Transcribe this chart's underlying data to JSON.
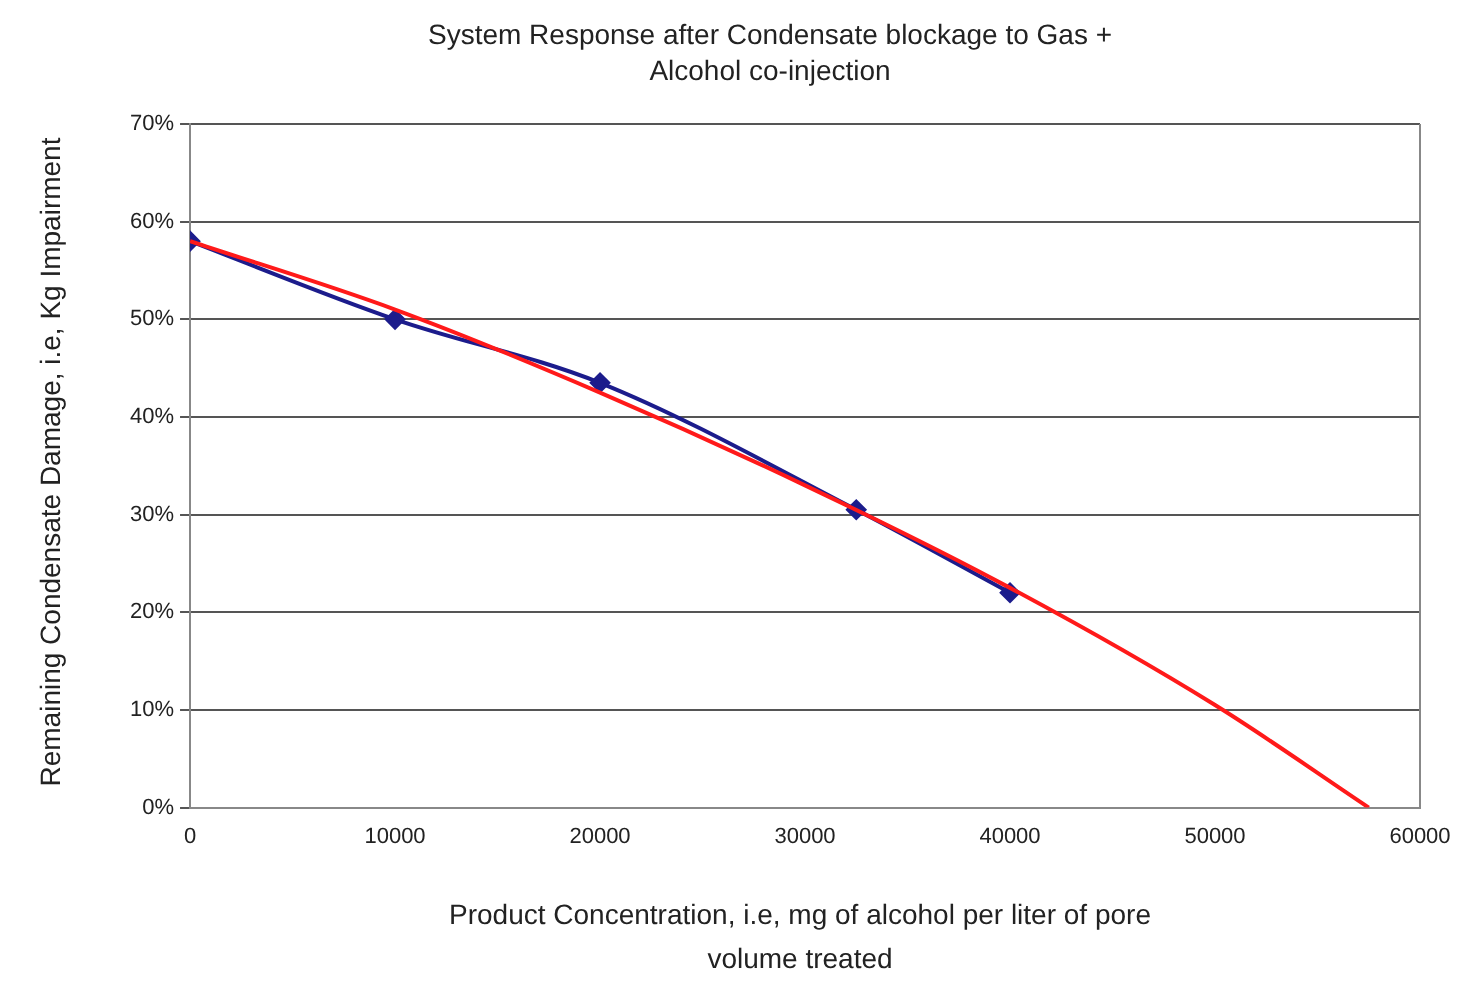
{
  "chart_data": {
    "type": "line",
    "title": "System Response after Condensate blockage to Gas + Alcohol co-injection",
    "xlabel": "Product Concentration, i.e, mg of alcohol per liter of pore volume treated",
    "ylabel": "Remaining Condensate Damage, i.e, Kg Impairment",
    "series": [
      {
        "color": "#1c1c8c",
        "marker": "diamond",
        "x": [
          0,
          10000,
          20000,
          32500,
          40000
        ],
        "values": [
          58,
          50,
          43.5,
          30.5,
          22
        ]
      },
      {
        "color": "#ff1a1a",
        "marker": "none",
        "x": [
          0,
          10000,
          20000,
          30000,
          40000,
          50000,
          57500
        ],
        "values": [
          58,
          51,
          42.5,
          33,
          22.5,
          10.5,
          0
        ]
      }
    ],
    "xlim": [
      0,
      60000
    ],
    "xticks": [
      0,
      10000,
      20000,
      30000,
      40000,
      50000,
      60000
    ],
    "ylim": [
      0,
      70
    ],
    "yticks": [
      {
        "value": 0,
        "label": "0%"
      },
      {
        "value": 10,
        "label": "10%"
      },
      {
        "value": 20,
        "label": "20%"
      },
      {
        "value": 30,
        "label": "30%"
      },
      {
        "value": 40,
        "label": "40%"
      },
      {
        "value": 50,
        "label": "50%"
      },
      {
        "value": 60,
        "label": "60%"
      },
      {
        "value": 70,
        "label": "70%"
      }
    ],
    "grid": "y",
    "legend": false
  }
}
